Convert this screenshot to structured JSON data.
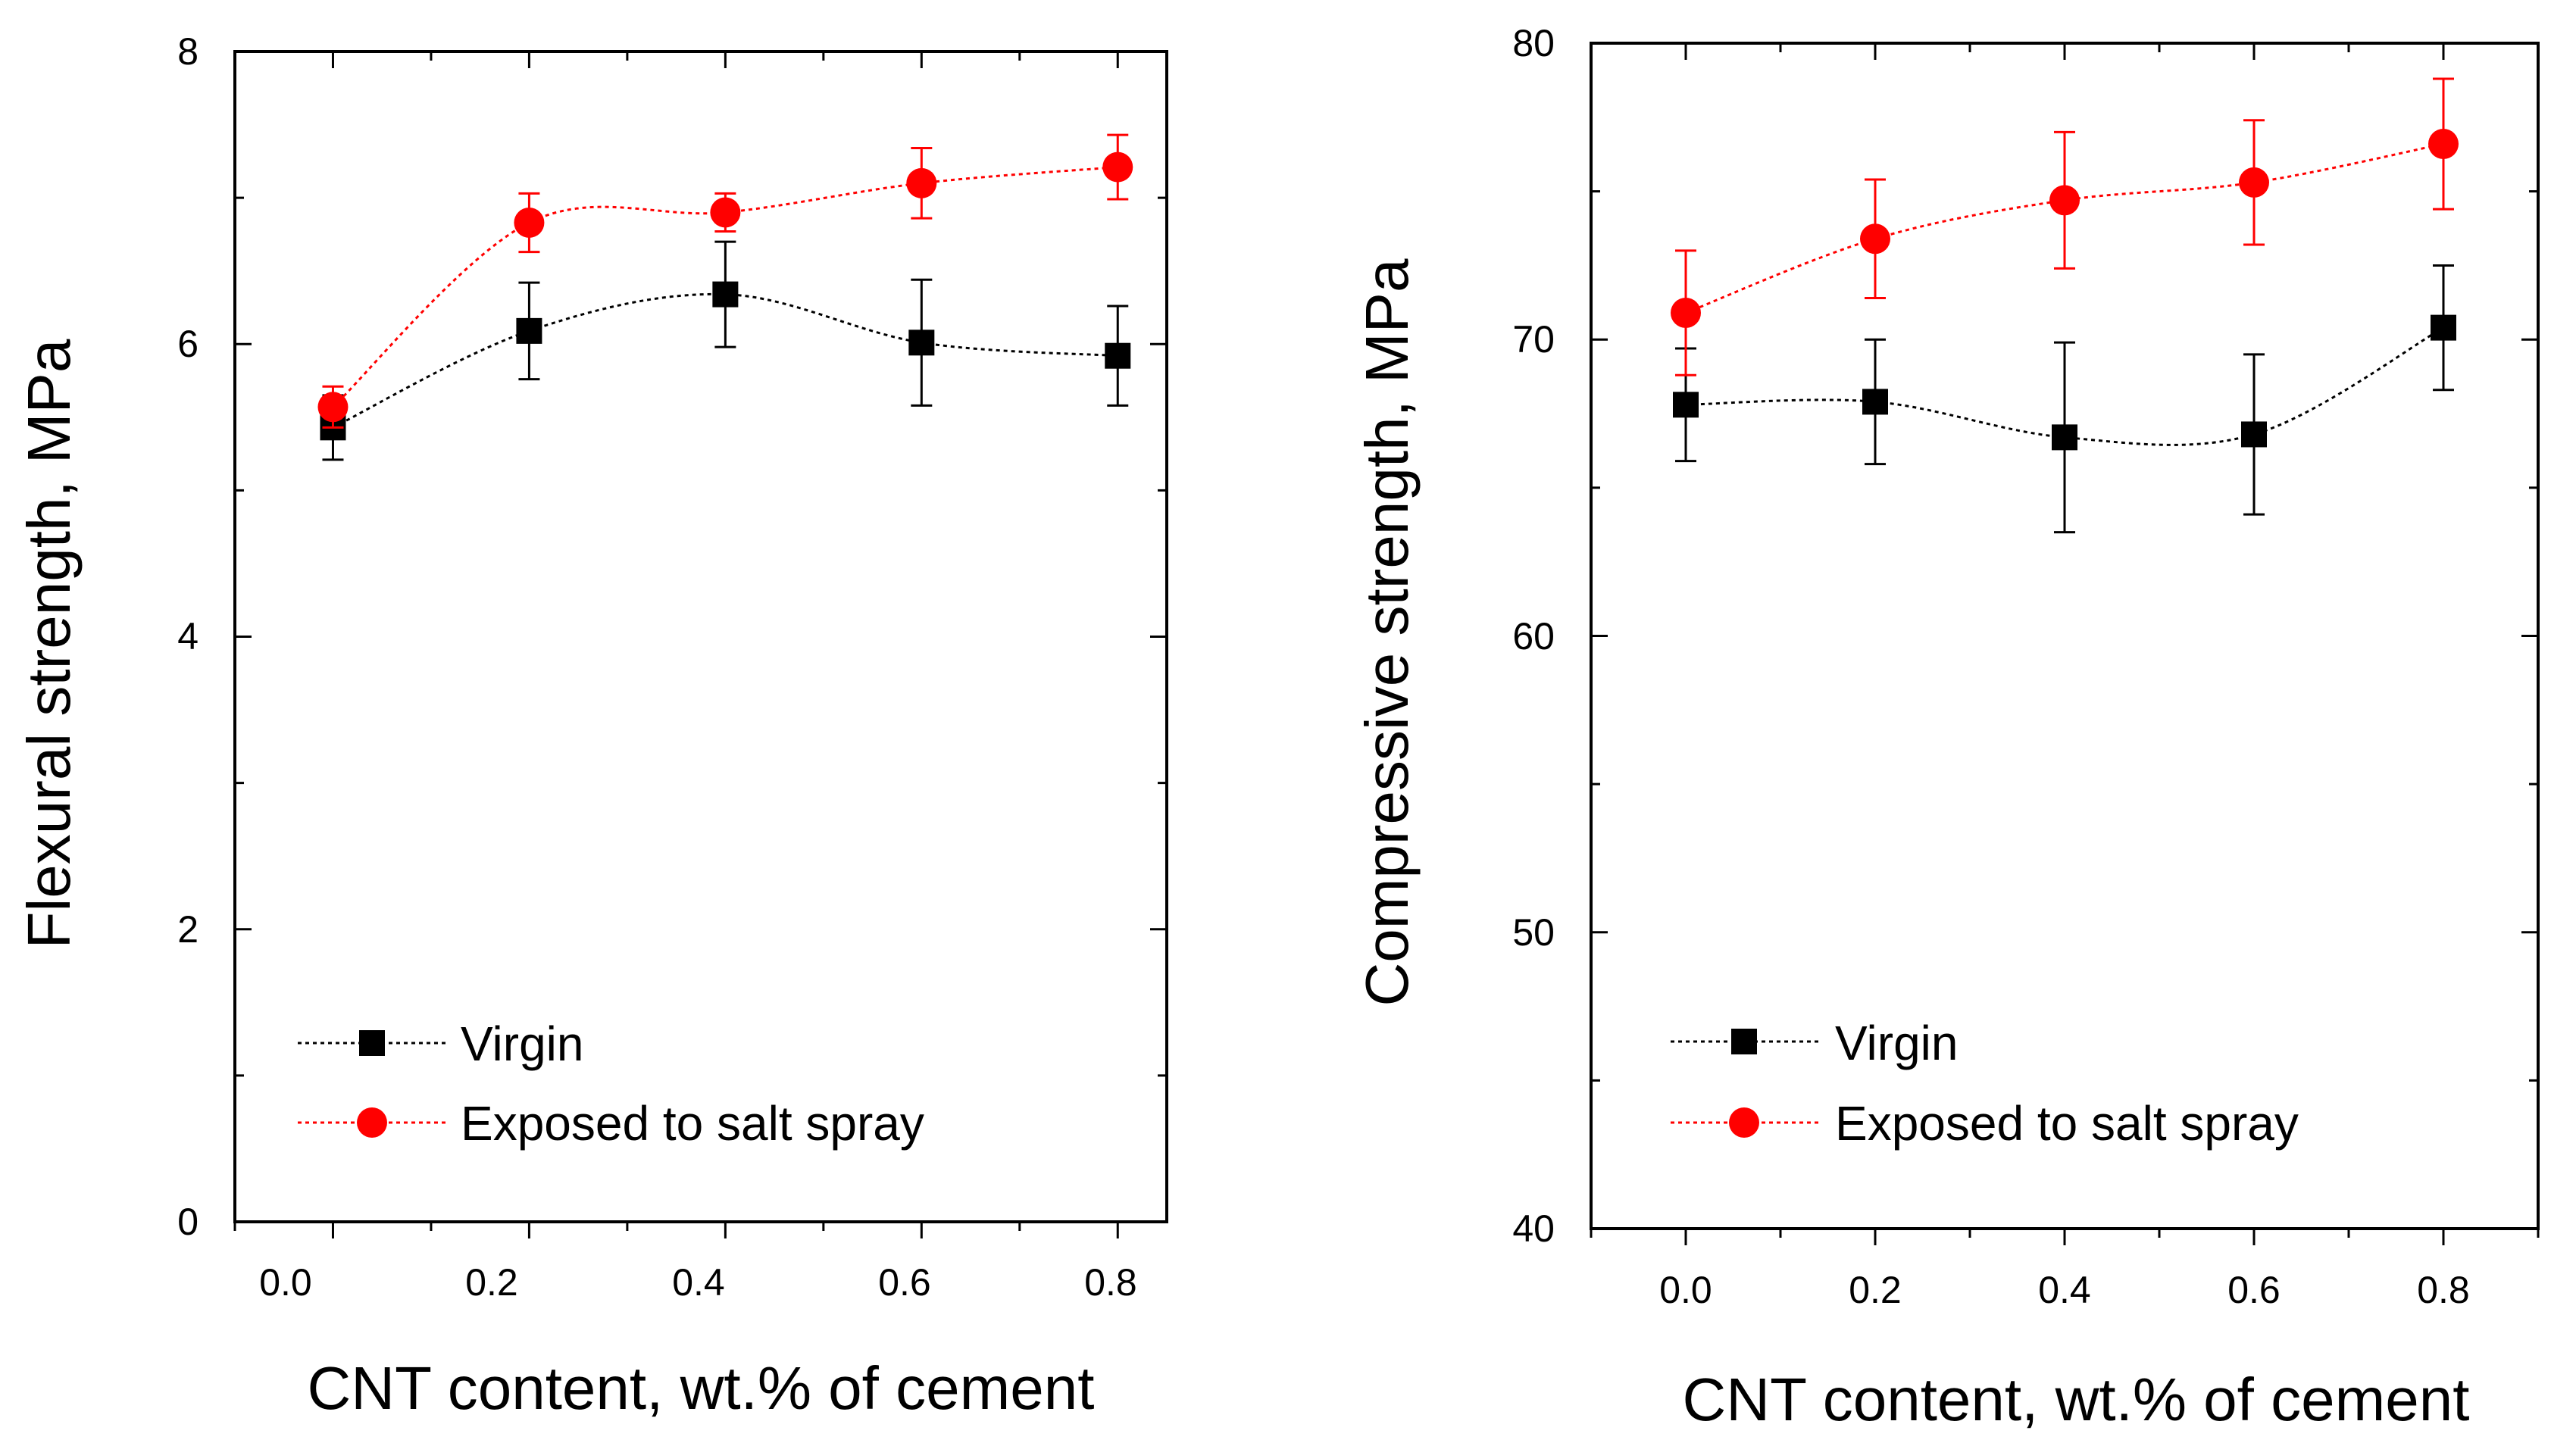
{
  "colors": {
    "virgin": "#000000",
    "salt": "#ff0000"
  },
  "chart_data": [
    {
      "type": "line",
      "xlabel": "CNT content, wt.% of cement",
      "ylabel": "Flexural strength, MPa",
      "x": [
        0.0,
        0.2,
        0.4,
        0.6,
        0.8
      ],
      "x_tick_labels": [
        "0.0",
        "0.2",
        "0.4",
        "0.6",
        "0.8"
      ],
      "y_tick_labels": [
        "0",
        "2",
        "4",
        "6",
        "8"
      ],
      "xlim": [
        -0.1,
        0.85
      ],
      "ylim": [
        0,
        8
      ],
      "legend_position": "bottom-left",
      "series": [
        {
          "name": "Virgin",
          "color_key": "virgin",
          "marker": "square",
          "values": [
            5.43,
            6.09,
            6.34,
            6.01,
            5.92
          ],
          "errors": [
            0.22,
            0.33,
            0.36,
            0.43,
            0.34
          ]
        },
        {
          "name": "Exposed to salt spray",
          "color_key": "salt",
          "marker": "circle",
          "values": [
            5.57,
            6.83,
            6.9,
            7.1,
            7.21
          ],
          "errors": [
            0.14,
            0.2,
            0.13,
            0.24,
            0.22
          ]
        }
      ]
    },
    {
      "type": "line",
      "xlabel": "CNT content, wt.% of cement",
      "ylabel": "Compressive strength, MPa",
      "x": [
        0.0,
        0.2,
        0.4,
        0.6,
        0.8
      ],
      "x_tick_labels": [
        "0.0",
        "0.2",
        "0.4",
        "0.6",
        "0.8"
      ],
      "y_tick_labels": [
        "40",
        "50",
        "60",
        "70",
        "80"
      ],
      "xlim": [
        -0.1,
        0.9
      ],
      "ylim": [
        40,
        80
      ],
      "legend_position": "bottom-left",
      "series": [
        {
          "name": "Virgin",
          "color_key": "virgin",
          "marker": "square",
          "values": [
            67.8,
            67.9,
            66.7,
            66.8,
            70.4
          ],
          "errors": [
            1.9,
            2.1,
            3.2,
            2.7,
            2.1
          ]
        },
        {
          "name": "Exposed to salt spray",
          "color_key": "salt",
          "marker": "circle",
          "values": [
            70.9,
            73.4,
            74.7,
            75.3,
            76.6
          ],
          "errors": [
            2.1,
            2.0,
            2.3,
            2.1,
            2.2
          ]
        }
      ]
    }
  ]
}
